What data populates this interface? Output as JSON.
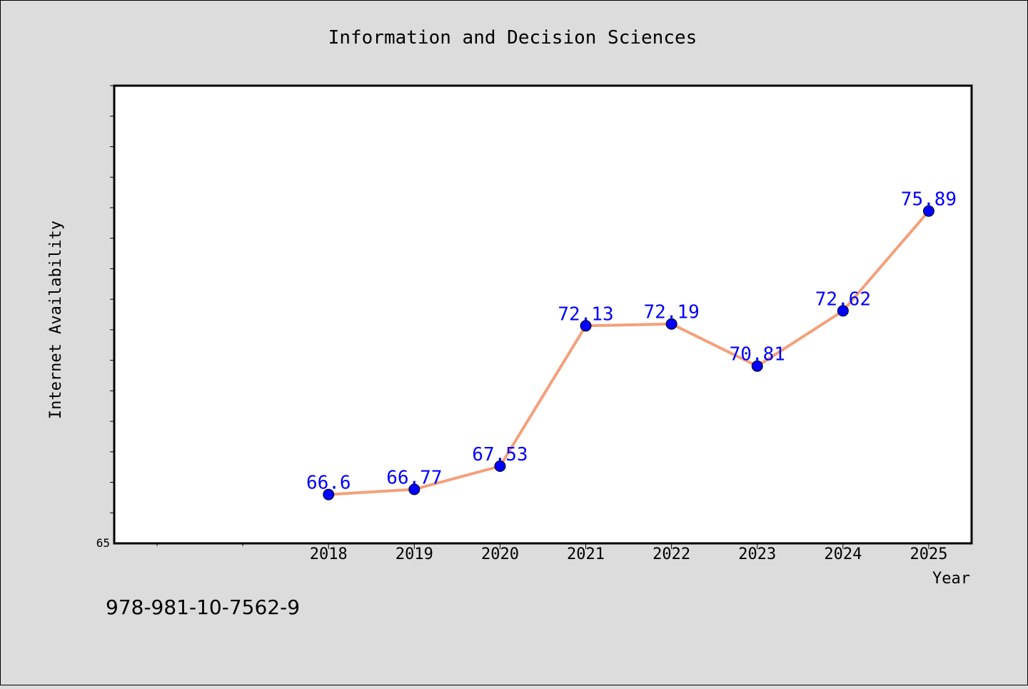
{
  "chart_data": {
    "type": "line",
    "title": "Information and Decision Sciences",
    "xlabel": "Year",
    "ylabel": "Internet Availability",
    "categories": [
      "2018",
      "2019",
      "2020",
      "2021",
      "2022",
      "2023",
      "2024",
      "2025"
    ],
    "series": [
      {
        "values": [
          66.6,
          66.77,
          67.53,
          72.13,
          72.19,
          70.81,
          72.62,
          75.89
        ],
        "data_labels": [
          "66.6",
          "66.77",
          "67.53",
          "72.13",
          "72.19",
          "70.81",
          "72.62",
          "75.89"
        ]
      }
    ],
    "x_range": [
      2015.5,
      2025.5
    ],
    "ylim": [
      65,
      80
    ],
    "y_tick_labels": [
      "65"
    ],
    "grid": false,
    "line_color": "#f4a07a",
    "marker_color": "#0000ff",
    "label_color": "#0000ff"
  },
  "footer": {
    "isbn": "978-981-10-7562-9"
  }
}
